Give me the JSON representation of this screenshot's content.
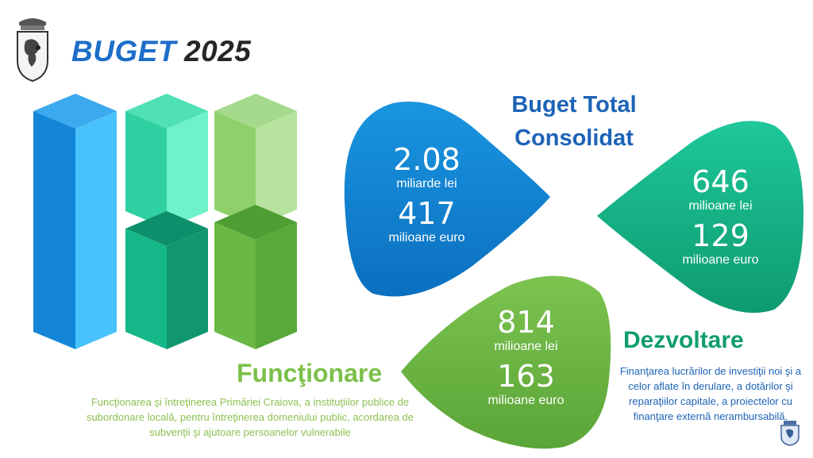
{
  "header": {
    "brand_word": "BUGET",
    "brand_year": "2025"
  },
  "total": {
    "title": "Buget Total Consolidat",
    "amount_lei": "2.08",
    "unit_lei": "miliarde lei",
    "amount_eur": "417",
    "unit_eur": "milioane euro"
  },
  "dezvoltare": {
    "title": "Dezvoltare",
    "amount_lei": "646",
    "unit_lei": "milioane lei",
    "amount_eur": "129",
    "unit_eur": "milioane euro",
    "description": "Finanţarea lucrărilor de investiţii noi şi a celor aflate în derulare, a dotărilor şi reparaţiilor capitale, a proiectelor cu finanţare externă nerambursabilă."
  },
  "functionare": {
    "title": "Funcţionare",
    "amount_lei": "814",
    "unit_lei": "milioane lei",
    "amount_eur": "163",
    "unit_eur": "milioane euro",
    "description": "Funcţionarea şi întreţinerea Primăriei Craiova, a instituţiilor publice de subordonare locală, pentru întreţinerea domeniului public, acordarea de subvenţii şi ajutoare persoanelor vulnerabile"
  },
  "colors": {
    "blue": "#1c6ec8",
    "teal": "#14b98a",
    "green": "#6ab845"
  },
  "icons": {
    "crest": "city-crest-icon",
    "crest_small": "city-crest-small-icon"
  }
}
